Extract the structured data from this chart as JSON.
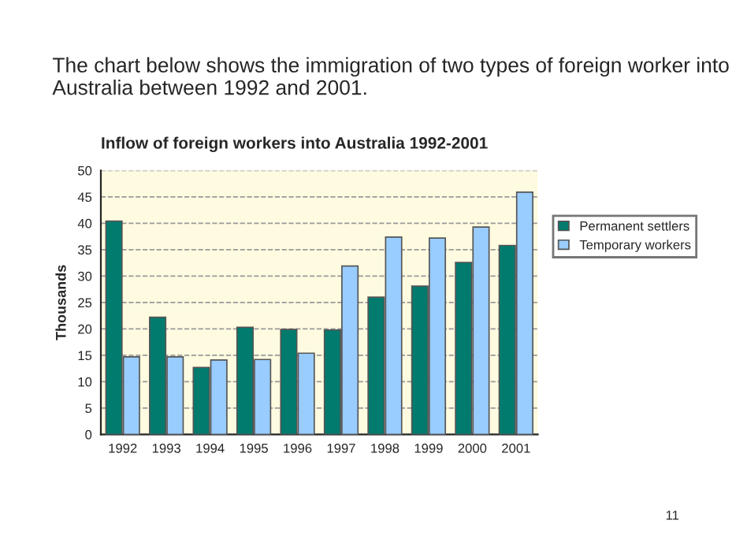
{
  "chart_data": {
    "type": "bar",
    "title": "The chart below shows the immigration of two types of foreign worker into Australia between 1992 and 2001.",
    "subtitle": "Inflow of foreign workers into Australia 1992-2001",
    "ylabel": "Thousands",
    "categories": [
      "1992",
      "1993",
      "1994",
      "1995",
      "1996",
      "1997",
      "1998",
      "1999",
      "2000",
      "2001"
    ],
    "series": [
      {
        "name": "Permanent settlers",
        "color": "#007b6e",
        "values": [
          40.4,
          22.2,
          12.7,
          20.3,
          19.9,
          19.8,
          26.0,
          28.1,
          32.6,
          35.8
        ]
      },
      {
        "name": "Temporary workers",
        "color": "#99ccff",
        "values": [
          14.7,
          14.7,
          14.1,
          14.2,
          15.4,
          31.9,
          37.4,
          37.2,
          39.3,
          45.9
        ]
      }
    ],
    "ylim": [
      0,
      50
    ],
    "yticks": [
      0,
      5,
      10,
      15,
      20,
      25,
      30,
      35,
      40,
      45,
      50
    ],
    "grid": "y",
    "legend": "right",
    "annotations": [
      "11"
    ]
  }
}
